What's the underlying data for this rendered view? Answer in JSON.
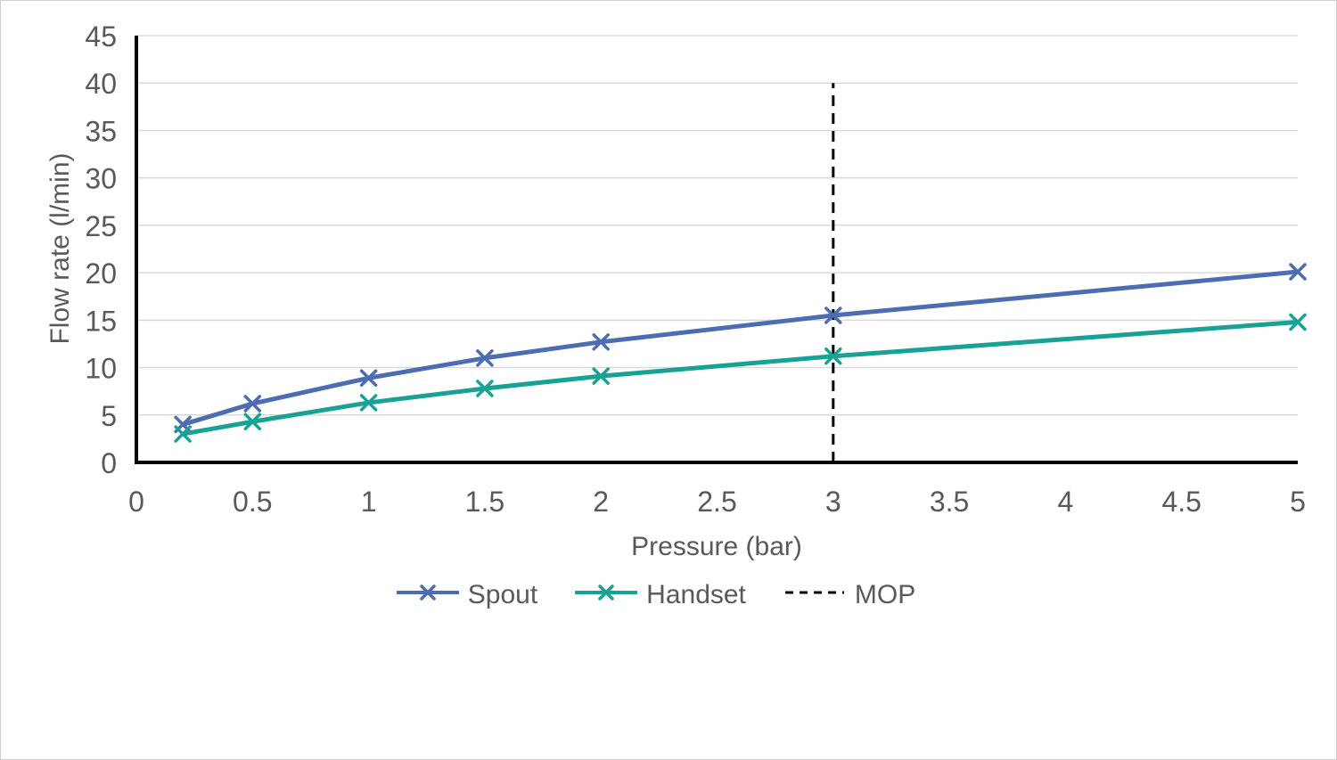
{
  "figure": {
    "background": "#ffffff",
    "border_color": "#cfcfcf"
  },
  "chart_data": {
    "type": "line",
    "title": "",
    "xlabel": "Pressure (bar)",
    "ylabel": "Flow rate (l/min)",
    "xlim": [
      0,
      5
    ],
    "ylim": [
      0,
      45
    ],
    "xticks": [
      0,
      0.5,
      1,
      1.5,
      2,
      2.5,
      3,
      3.5,
      4,
      4.5,
      5
    ],
    "yticks": [
      0,
      5,
      10,
      15,
      20,
      25,
      30,
      35,
      40,
      45
    ],
    "grid": "horizontal",
    "legend_position": "bottom",
    "axis_text_color": "#595959",
    "gridline_color": "#d9d9d9",
    "axis_line_color": "#000000",
    "series": [
      {
        "name": "Spout",
        "color": "#4c6cb3",
        "marker": "x",
        "x": [
          0.2,
          0.5,
          1,
          1.5,
          2,
          3,
          5
        ],
        "y": [
          4.0,
          6.2,
          8.9,
          11.0,
          12.7,
          15.5,
          20.1
        ]
      },
      {
        "name": "Handset",
        "color": "#17a295",
        "marker": "x",
        "x": [
          0.2,
          0.5,
          1,
          1.5,
          2,
          3,
          5
        ],
        "y": [
          3.0,
          4.3,
          6.3,
          7.8,
          9.1,
          11.2,
          14.8
        ]
      }
    ],
    "vline": {
      "label": "MOP",
      "x": 3,
      "y_from": 0,
      "y_to": 40,
      "style": "dashed",
      "color": "#000000"
    }
  }
}
